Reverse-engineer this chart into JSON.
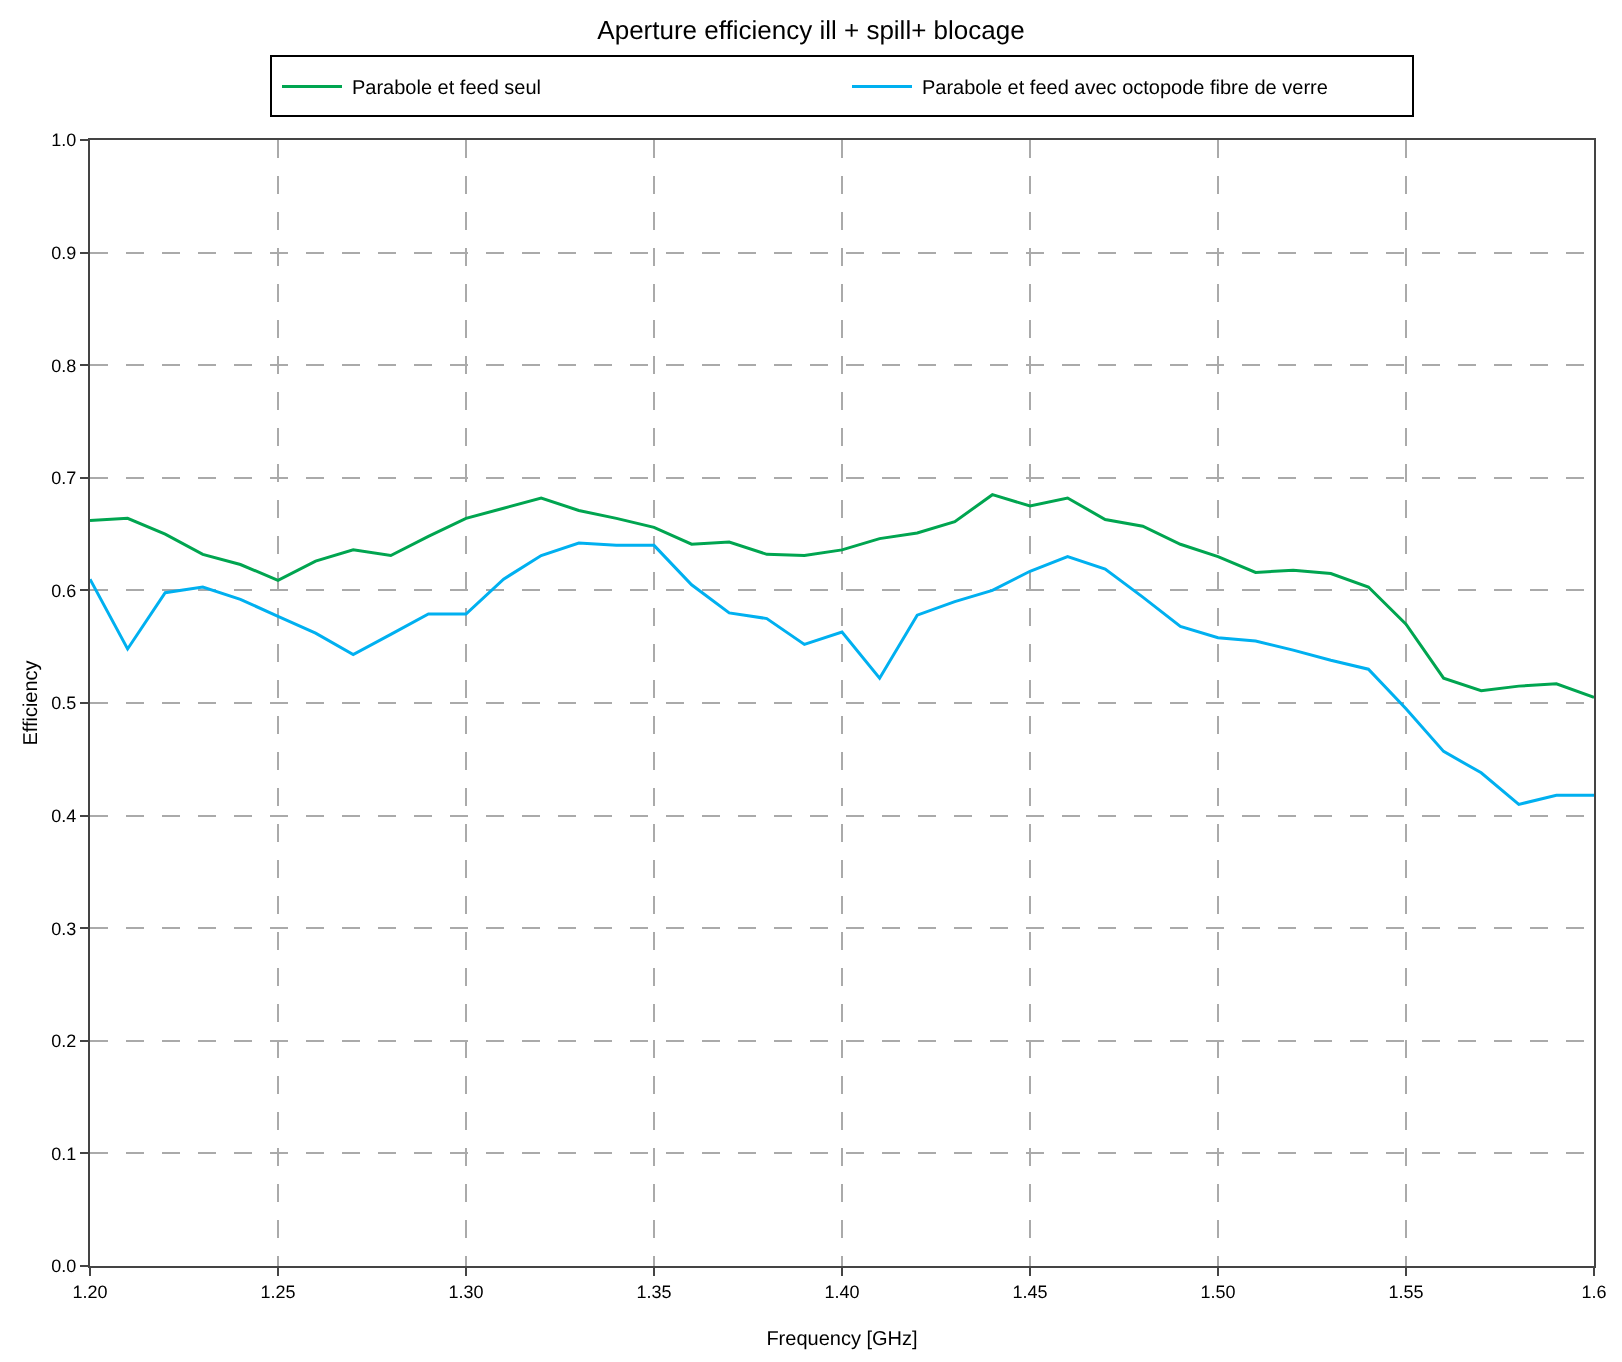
{
  "chart_data": {
    "type": "line",
    "title": "Aperture efficiency ill + spill+ blocage",
    "xlabel": "Frequency [GHz]",
    "ylabel": "Efficiency",
    "x": [
      1.2,
      1.21,
      1.22,
      1.23,
      1.24,
      1.25,
      1.26,
      1.27,
      1.28,
      1.29,
      1.3,
      1.31,
      1.32,
      1.33,
      1.34,
      1.35,
      1.36,
      1.37,
      1.38,
      1.39,
      1.4,
      1.41,
      1.42,
      1.43,
      1.44,
      1.45,
      1.46,
      1.47,
      1.48,
      1.49,
      1.5,
      1.51,
      1.52,
      1.53,
      1.54,
      1.55,
      1.56,
      1.57,
      1.58,
      1.59,
      1.6
    ],
    "series": [
      {
        "name": "Parabole et feed seul",
        "color": "#00a550",
        "values": [
          0.662,
          0.664,
          0.65,
          0.632,
          0.623,
          0.609,
          0.626,
          0.636,
          0.631,
          0.648,
          0.664,
          0.673,
          0.682,
          0.671,
          0.664,
          0.656,
          0.641,
          0.643,
          0.632,
          0.631,
          0.636,
          0.646,
          0.651,
          0.661,
          0.685,
          0.675,
          0.682,
          0.663,
          0.657,
          0.641,
          0.63,
          0.616,
          0.618,
          0.615,
          0.603,
          0.57,
          0.522,
          0.511,
          0.515,
          0.517,
          0.505
        ]
      },
      {
        "name": "Parabole et feed avec octopode fibre de verre",
        "color": "#00b0f0",
        "values": [
          0.61,
          0.548,
          0.598,
          0.603,
          0.592,
          0.577,
          0.562,
          0.543,
          0.561,
          0.579,
          0.579,
          0.61,
          0.631,
          0.642,
          0.64,
          0.64,
          0.605,
          0.58,
          0.575,
          0.552,
          0.563,
          0.522,
          0.578,
          0.59,
          0.6,
          0.617,
          0.63,
          0.619,
          0.594,
          0.568,
          0.558,
          0.555,
          0.547,
          0.538,
          0.53,
          0.495,
          0.457,
          0.438,
          0.41,
          0.418,
          0.418
        ]
      }
    ],
    "xlim": [
      1.2,
      1.6
    ],
    "xticks": [
      {
        "value": 1.2,
        "label": "1.20"
      },
      {
        "value": 1.25,
        "label": "1.25"
      },
      {
        "value": 1.3,
        "label": "1.30"
      },
      {
        "value": 1.35,
        "label": "1.35"
      },
      {
        "value": 1.4,
        "label": "1.40"
      },
      {
        "value": 1.45,
        "label": "1.45"
      },
      {
        "value": 1.5,
        "label": "1.50"
      },
      {
        "value": 1.55,
        "label": "1.55"
      },
      {
        "value": 1.6,
        "label": "1.6"
      }
    ],
    "ylim": [
      0,
      1
    ],
    "yticks": [
      {
        "value": 0,
        "label": "0.0"
      },
      0.1,
      0.2,
      0.3,
      0.4,
      0.5,
      0.6,
      0.7,
      0.8,
      0.9,
      {
        "value": 1,
        "label": "1.0"
      }
    ],
    "grid": true,
    "legend": "top",
    "line_style": "solid",
    "marker": "none"
  }
}
